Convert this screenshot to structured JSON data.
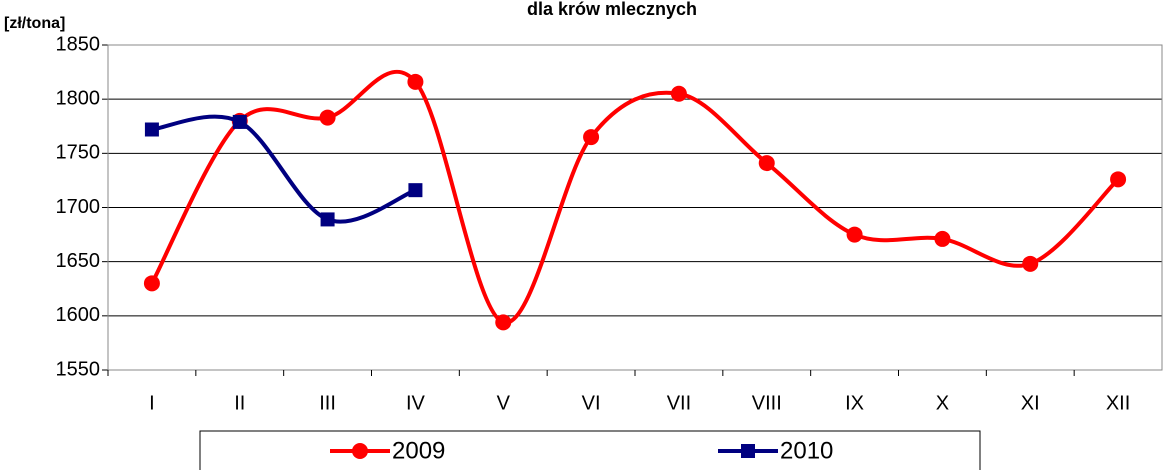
{
  "chart_data": {
    "type": "line",
    "title": "dla krów mlecznych",
    "y_label": "[zł/tona]",
    "categories": [
      "I",
      "II",
      "III",
      "IV",
      "V",
      "VI",
      "VII",
      "VIII",
      "IX",
      "X",
      "XI",
      "XII"
    ],
    "series": [
      {
        "name": "2009",
        "color": "#ff0000",
        "marker": "circle",
        "values": [
          1630,
          1780,
          1783,
          1816,
          1594,
          1765,
          1805,
          1741,
          1675,
          1671,
          1648,
          1726
        ]
      },
      {
        "name": "2010",
        "color": "#000080",
        "marker": "square",
        "values": [
          1772,
          1779,
          1689,
          1716,
          null,
          null,
          null,
          null,
          null,
          null,
          null,
          null
        ]
      }
    ],
    "ylim": [
      1550,
      1850
    ],
    "yticks": [
      1550,
      1600,
      1650,
      1700,
      1750,
      1800,
      1850
    ],
    "grid": true,
    "smooth": true,
    "legend": "bottom"
  }
}
